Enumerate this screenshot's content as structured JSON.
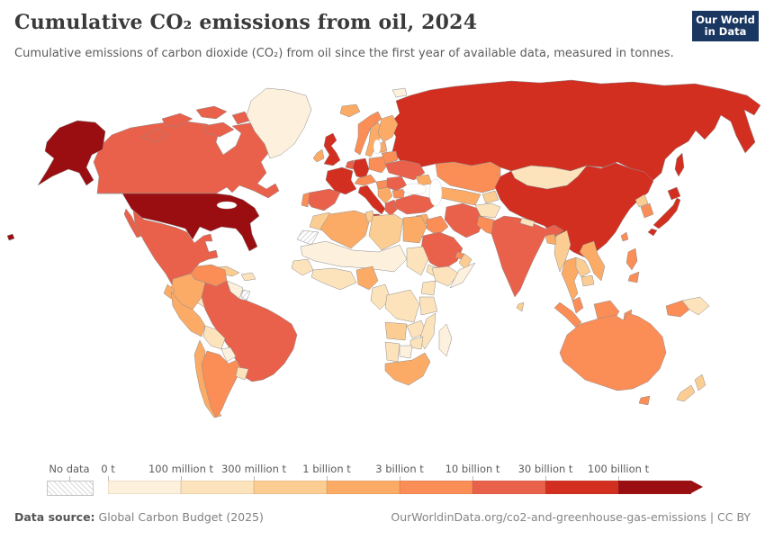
{
  "header": {
    "title": "Cumulative CO₂ emissions from oil, 2024",
    "subtitle": "Cumulative emissions of carbon dioxide (CO₂) from oil since the first year of available data, measured in tonnes.",
    "logo": {
      "line1": "Our World",
      "line2": "in Data",
      "bg": "#1a3761",
      "accent": "#dc3a26"
    }
  },
  "legend": {
    "no_data_label": "No data",
    "tick_labels": [
      "0 t",
      "100 million t",
      "300 million t",
      "1 billion t",
      "3 billion t",
      "10 billion t",
      "30 billion t",
      "100 billion t"
    ],
    "colors": [
      "#fdf0dd",
      "#fde3bb",
      "#fccd92",
      "#fcab67",
      "#fb8d57",
      "#e9614b",
      "#d32f20",
      "#9a0e11"
    ]
  },
  "footer": {
    "source_label": "Data source:",
    "source_value": " Global Carbon Budget (2025)",
    "link": "OurWorldinData.org/co2-and-greenhouse-gas-emissions | CC BY"
  },
  "map": {
    "regions": {
      "russia": 7,
      "canada": 6,
      "greenland": 1,
      "usa": 8,
      "mexico": 6,
      "guatemala": 3,
      "central-america": 2,
      "panama": 3,
      "cuba": 3,
      "hispaniola": 2,
      "venezuela": 5,
      "guyana": 1,
      "french-guiana": 0,
      "colombia": 4,
      "ecuador": 4,
      "brazil": 6,
      "peru": 4,
      "bolivia": 2,
      "paraguay": 1,
      "chile": 4,
      "argentina": 5,
      "uruguay": 2,
      "iceland": 4,
      "norway": 5,
      "sweden": 4,
      "finland": 4,
      "denmark": 5,
      "uk": 7,
      "ireland": 4,
      "france": 7,
      "spain": 6,
      "portugal": 5,
      "germany": 7,
      "benelux": 6,
      "poland": 5,
      "czech-austria": 5,
      "italy": 7,
      "hungary": 5,
      "balkans": 4,
      "romania": 6,
      "bulgaria": 5,
      "greece": 6,
      "ukraine": 6,
      "belarus": 5,
      "baltics": 4,
      "svalbard": 1,
      "kazakhstan": 5,
      "uzbekistan-turkmenistan": 4,
      "kyrgyzstan-tajikistan": 3,
      "caucasus": 4,
      "turkey": 6,
      "syria": 4,
      "levant": 3,
      "iraq": 5,
      "iran": 6,
      "saudi-arabia": 6,
      "uae": 5,
      "oman": 3,
      "yemen": 2,
      "afghanistan": 2,
      "pakistan": 5,
      "india": 6,
      "sri-lanka": 3,
      "nepal": 2,
      "bangladesh": 4,
      "myanmar": 3,
      "thailand": 4,
      "laos": 3,
      "cambodia": 3,
      "vietnam": 4,
      "malaysia": 5,
      "indonesia": 5,
      "papua-new-guinea": 2,
      "philippines": 5,
      "taiwan": 5,
      "mongolia": 2,
      "china": 7,
      "north-korea": 3,
      "south-korea": 5,
      "japan": 7,
      "morocco": 3,
      "western-sahara": 0,
      "algeria": 4,
      "tunisia": 3,
      "libya": 3,
      "egypt": 4,
      "sahel": 1,
      "senegal-guinea": 2,
      "west-africa-coast": 2,
      "nigeria": 4,
      "cameroon-gabon": 2,
      "sudan": 2,
      "ethiopia": 2,
      "somalia": 1,
      "kenya": 2,
      "drc": 2,
      "tanzania": 2,
      "angola": 3,
      "zambia": 2,
      "mozambique": 2,
      "zimbabwe": 2,
      "namibia": 2,
      "botswana": 1,
      "south-africa": 4,
      "madagascar": 1,
      "australia": 5,
      "new-zealand": 3
    }
  }
}
